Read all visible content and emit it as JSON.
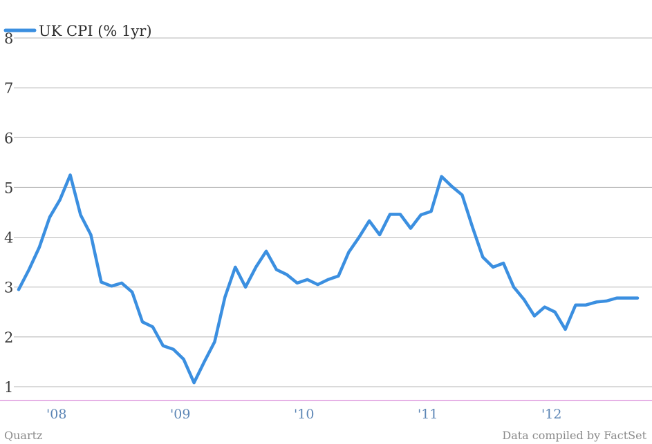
{
  "chart_data": {
    "type": "line",
    "title": "",
    "xlabel": "",
    "ylabel": "",
    "ylim": [
      0.7,
      8
    ],
    "yticks": [
      1,
      2,
      3,
      4,
      5,
      6,
      7,
      8
    ],
    "x_tick_labels": [
      {
        "x": 2008,
        "label": "'08"
      },
      {
        "x": 2009,
        "label": "'09"
      },
      {
        "x": 2010,
        "label": "'10"
      },
      {
        "x": 2011,
        "label": "'11"
      },
      {
        "x": 2012,
        "label": "'12"
      }
    ],
    "grid": true,
    "legend_position": "top-left",
    "series": [
      {
        "name": "UK CPI (% 1yr)",
        "color": "#3b8fe0",
        "x": [
          2007.75,
          2007.833,
          2007.917,
          2008.0,
          2008.083,
          2008.167,
          2008.25,
          2008.333,
          2008.417,
          2008.5,
          2008.583,
          2008.667,
          2008.75,
          2008.833,
          2008.917,
          2009.0,
          2009.083,
          2009.167,
          2009.25,
          2009.333,
          2009.417,
          2009.5,
          2009.583,
          2009.667,
          2009.75,
          2009.833,
          2009.917,
          2010.0,
          2010.083,
          2010.167,
          2010.25,
          2010.333,
          2010.417,
          2010.5,
          2010.583,
          2010.667,
          2010.75,
          2010.833,
          2010.917,
          2011.0,
          2011.083,
          2011.167,
          2011.25,
          2011.333,
          2011.417,
          2011.5,
          2011.583,
          2011.667,
          2011.75,
          2011.833,
          2011.917,
          2012.0,
          2012.083,
          2012.167,
          2012.25,
          2012.333,
          2012.417,
          2012.5,
          2012.583,
          2012.667,
          2012.75
        ],
        "values": [
          2.95,
          3.35,
          3.8,
          4.4,
          4.75,
          5.25,
          4.45,
          4.05,
          3.1,
          3.02,
          3.08,
          2.9,
          2.3,
          2.2,
          1.82,
          1.75,
          1.55,
          1.08,
          1.5,
          1.9,
          2.8,
          3.4,
          3.0,
          3.4,
          3.72,
          3.35,
          3.25,
          3.08,
          3.15,
          3.05,
          3.15,
          3.22,
          3.7,
          4.0,
          4.33,
          4.05,
          4.46,
          4.46,
          4.18,
          4.45,
          4.52,
          5.22,
          5.02,
          4.85,
          4.2,
          3.6,
          3.4,
          3.48,
          3.0,
          2.75,
          2.42,
          2.6,
          2.5,
          2.15,
          2.64,
          2.64,
          2.7,
          2.72,
          2.78,
          2.78,
          2.78
        ]
      }
    ]
  },
  "footer": {
    "source_left": "Quartz",
    "source_right": "Data compiled by FactSet"
  }
}
